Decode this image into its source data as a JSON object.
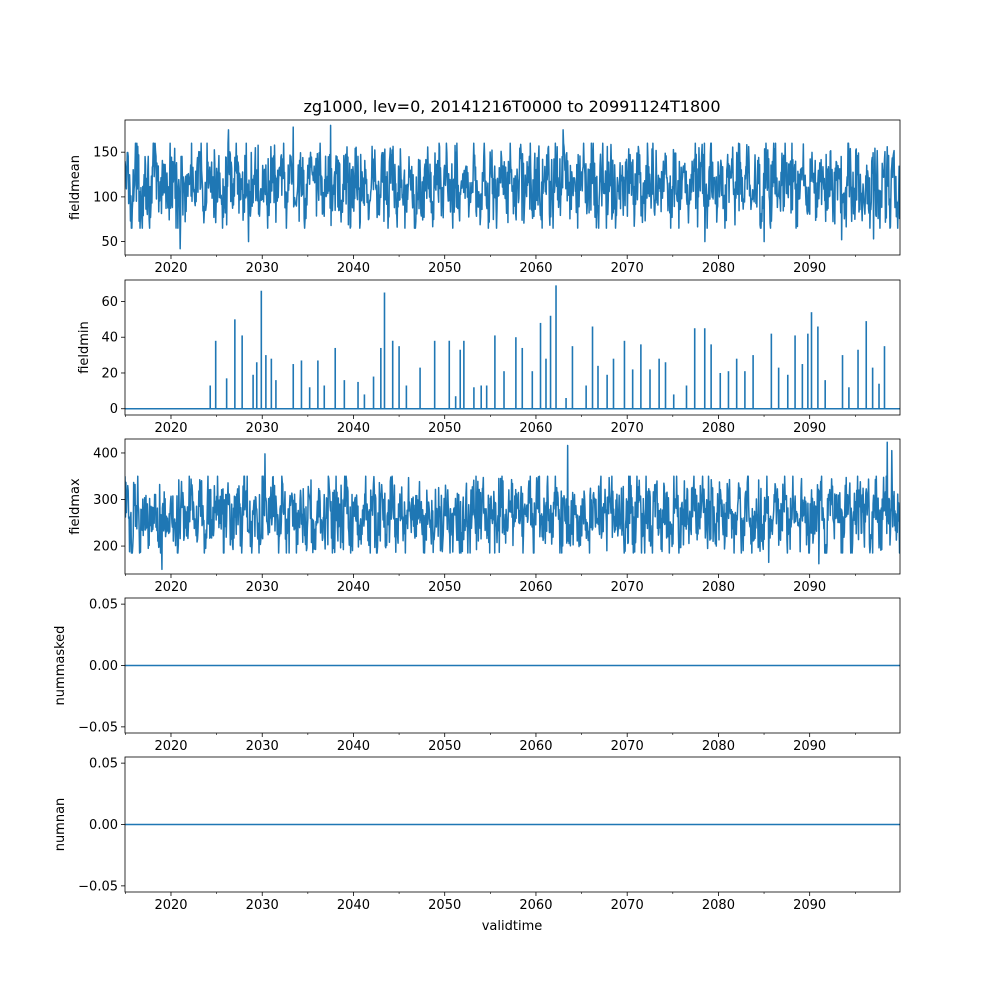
{
  "title": "zg1000, lev=0, 20141216T0000 to 20991124T1800",
  "xlabel": "validtime",
  "colors": {
    "series": "#1f77b4",
    "axes": "#000000",
    "background": "#ffffff"
  },
  "chart_data": [
    {
      "type": "line",
      "ylabel": "fieldmean",
      "x_range": [
        2014.96,
        2099.9
      ],
      "ylim": [
        35,
        186
      ],
      "x_ticks": [
        2020,
        2030,
        2040,
        2050,
        2060,
        2070,
        2080,
        2090
      ],
      "x_tick_labels": [
        "2020",
        "2030",
        "2040",
        "2050",
        "2060",
        "2070",
        "2080",
        "2090"
      ],
      "y_ticks": [
        50,
        100,
        150
      ],
      "y_tick_labels": [
        "50",
        "100",
        "150"
      ],
      "series_summary": {
        "center": 113,
        "typical_low": 70,
        "typical_high": 155,
        "min": 42,
        "max": 180
      },
      "extremes": [
        {
          "x": 2021.0,
          "y": 42
        },
        {
          "x": 2033.4,
          "y": 178
        },
        {
          "x": 2037.5,
          "y": 180
        },
        {
          "x": 2026.3,
          "y": 175
        },
        {
          "x": 2063.0,
          "y": 175
        },
        {
          "x": 2028.5,
          "y": 50
        },
        {
          "x": 2078.5,
          "y": 50
        },
        {
          "x": 2085.0,
          "y": 50
        },
        {
          "x": 2093.5,
          "y": 52
        },
        {
          "x": 2097.0,
          "y": 53
        }
      ]
    },
    {
      "type": "line",
      "ylabel": "fieldmin",
      "x_range": [
        2014.96,
        2099.9
      ],
      "ylim": [
        -3.5,
        72
      ],
      "x_ticks": [
        2020,
        2030,
        2040,
        2050,
        2060,
        2070,
        2080,
        2090
      ],
      "x_tick_labels": [
        "2020",
        "2030",
        "2040",
        "2050",
        "2060",
        "2070",
        "2080",
        "2090"
      ],
      "y_ticks": [
        0,
        20,
        40,
        60
      ],
      "y_tick_labels": [
        "0",
        "20",
        "40",
        "60"
      ],
      "baseline": 0,
      "spikes": [
        {
          "x": 2024.3,
          "y": 13
        },
        {
          "x": 2024.9,
          "y": 38
        },
        {
          "x": 2026.1,
          "y": 17
        },
        {
          "x": 2027.0,
          "y": 50
        },
        {
          "x": 2027.8,
          "y": 41
        },
        {
          "x": 2029.0,
          "y": 19
        },
        {
          "x": 2029.4,
          "y": 26
        },
        {
          "x": 2029.9,
          "y": 66
        },
        {
          "x": 2030.4,
          "y": 30
        },
        {
          "x": 2031.0,
          "y": 28
        },
        {
          "x": 2031.5,
          "y": 16
        },
        {
          "x": 2033.4,
          "y": 25
        },
        {
          "x": 2034.3,
          "y": 27
        },
        {
          "x": 2035.2,
          "y": 12
        },
        {
          "x": 2036.1,
          "y": 27
        },
        {
          "x": 2036.8,
          "y": 13
        },
        {
          "x": 2038.0,
          "y": 34
        },
        {
          "x": 2039.0,
          "y": 16
        },
        {
          "x": 2040.5,
          "y": 15
        },
        {
          "x": 2041.2,
          "y": 8
        },
        {
          "x": 2042.2,
          "y": 18
        },
        {
          "x": 2043.0,
          "y": 34
        },
        {
          "x": 2043.4,
          "y": 65
        },
        {
          "x": 2044.3,
          "y": 38
        },
        {
          "x": 2045.0,
          "y": 35
        },
        {
          "x": 2045.8,
          "y": 13
        },
        {
          "x": 2047.3,
          "y": 23
        },
        {
          "x": 2048.9,
          "y": 38
        },
        {
          "x": 2050.5,
          "y": 38
        },
        {
          "x": 2051.2,
          "y": 7
        },
        {
          "x": 2051.7,
          "y": 33
        },
        {
          "x": 2052.1,
          "y": 38
        },
        {
          "x": 2053.2,
          "y": 12
        },
        {
          "x": 2054.0,
          "y": 13
        },
        {
          "x": 2054.6,
          "y": 13
        },
        {
          "x": 2055.5,
          "y": 41
        },
        {
          "x": 2056.5,
          "y": 21
        },
        {
          "x": 2057.8,
          "y": 40
        },
        {
          "x": 2058.5,
          "y": 34
        },
        {
          "x": 2059.6,
          "y": 21
        },
        {
          "x": 2060.5,
          "y": 48
        },
        {
          "x": 2061.1,
          "y": 28
        },
        {
          "x": 2061.6,
          "y": 52
        },
        {
          "x": 2062.2,
          "y": 69
        },
        {
          "x": 2063.3,
          "y": 6
        },
        {
          "x": 2064.0,
          "y": 35
        },
        {
          "x": 2065.5,
          "y": 13
        },
        {
          "x": 2066.2,
          "y": 46
        },
        {
          "x": 2066.8,
          "y": 24
        },
        {
          "x": 2067.8,
          "y": 19
        },
        {
          "x": 2068.5,
          "y": 28
        },
        {
          "x": 2069.7,
          "y": 38
        },
        {
          "x": 2070.6,
          "y": 22
        },
        {
          "x": 2071.5,
          "y": 36
        },
        {
          "x": 2072.5,
          "y": 22
        },
        {
          "x": 2073.5,
          "y": 28
        },
        {
          "x": 2074.2,
          "y": 26
        },
        {
          "x": 2075.1,
          "y": 8
        },
        {
          "x": 2076.5,
          "y": 13
        },
        {
          "x": 2077.4,
          "y": 45
        },
        {
          "x": 2078.5,
          "y": 45
        },
        {
          "x": 2079.2,
          "y": 36
        },
        {
          "x": 2080.2,
          "y": 20
        },
        {
          "x": 2081.1,
          "y": 21
        },
        {
          "x": 2082.0,
          "y": 28
        },
        {
          "x": 2082.9,
          "y": 21
        },
        {
          "x": 2083.8,
          "y": 30
        },
        {
          "x": 2085.8,
          "y": 42
        },
        {
          "x": 2086.6,
          "y": 23
        },
        {
          "x": 2087.6,
          "y": 19
        },
        {
          "x": 2088.4,
          "y": 41
        },
        {
          "x": 2089.2,
          "y": 25
        },
        {
          "x": 2089.8,
          "y": 42
        },
        {
          "x": 2090.2,
          "y": 54
        },
        {
          "x": 2090.9,
          "y": 46
        },
        {
          "x": 2091.7,
          "y": 16
        },
        {
          "x": 2093.6,
          "y": 30
        },
        {
          "x": 2094.3,
          "y": 12
        },
        {
          "x": 2095.3,
          "y": 33
        },
        {
          "x": 2096.2,
          "y": 49
        },
        {
          "x": 2096.9,
          "y": 23
        },
        {
          "x": 2097.6,
          "y": 14
        },
        {
          "x": 2098.2,
          "y": 35
        }
      ]
    },
    {
      "type": "line",
      "ylabel": "fieldmax",
      "x_range": [
        2014.96,
        2099.9
      ],
      "ylim": [
        140,
        430
      ],
      "x_ticks": [
        2020,
        2030,
        2040,
        2050,
        2060,
        2070,
        2080,
        2090
      ],
      "x_tick_labels": [
        "2020",
        "2030",
        "2040",
        "2050",
        "2060",
        "2070",
        "2080",
        "2090"
      ],
      "y_ticks": [
        200,
        300,
        400
      ],
      "y_tick_labels": [
        "200",
        "300",
        "400"
      ],
      "series_summary": {
        "center": 265,
        "typical_low": 190,
        "typical_high": 345,
        "min": 150,
        "max": 423
      },
      "extremes": [
        {
          "x": 2019.0,
          "y": 150
        },
        {
          "x": 2030.3,
          "y": 398
        },
        {
          "x": 2063.5,
          "y": 416
        },
        {
          "x": 2098.5,
          "y": 423
        },
        {
          "x": 2099.0,
          "y": 405
        },
        {
          "x": 2085.5,
          "y": 165
        },
        {
          "x": 2091.0,
          "y": 162
        }
      ]
    },
    {
      "type": "line",
      "ylabel": "nummasked",
      "x_range": [
        2014.96,
        2099.9
      ],
      "ylim": [
        -0.055,
        0.055
      ],
      "x_ticks": [
        2020,
        2030,
        2040,
        2050,
        2060,
        2070,
        2080,
        2090
      ],
      "x_tick_labels": [
        "2020",
        "2030",
        "2040",
        "2050",
        "2060",
        "2070",
        "2080",
        "2090"
      ],
      "y_ticks": [
        -0.05,
        0.0,
        0.05
      ],
      "y_tick_labels": [
        "−0.05",
        "0.00",
        "0.05"
      ],
      "constant_value": 0
    },
    {
      "type": "line",
      "ylabel": "numnan",
      "x_range": [
        2014.96,
        2099.9
      ],
      "ylim": [
        -0.055,
        0.055
      ],
      "x_ticks": [
        2020,
        2030,
        2040,
        2050,
        2060,
        2070,
        2080,
        2090
      ],
      "x_tick_labels": [
        "2020",
        "2030",
        "2040",
        "2050",
        "2060",
        "2070",
        "2080",
        "2090"
      ],
      "y_ticks": [
        -0.05,
        0.0,
        0.05
      ],
      "y_tick_labels": [
        "−0.05",
        "0.00",
        "0.05"
      ],
      "constant_value": 0
    }
  ]
}
